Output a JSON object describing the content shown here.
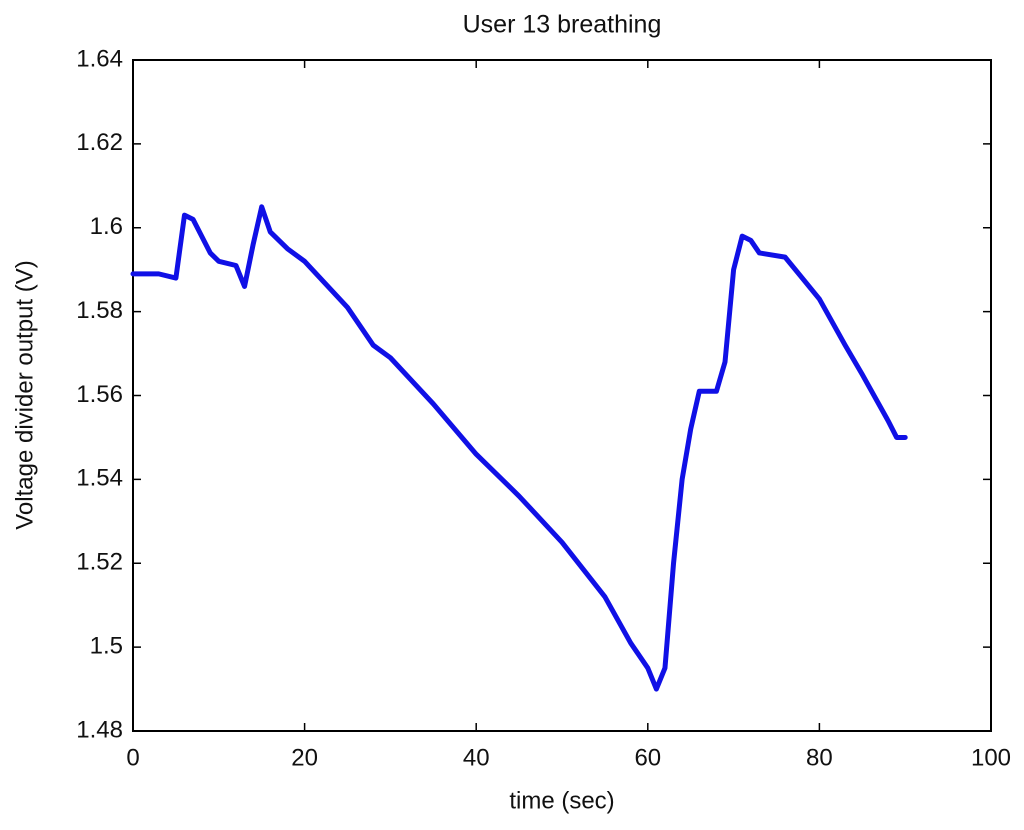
{
  "chart_data": {
    "type": "line",
    "title": "User 13 breathing",
    "x_label": "time (sec)",
    "y_label": "Voltage divider output (V)",
    "x": [
      0,
      3,
      5,
      6,
      7,
      9,
      10,
      12,
      13,
      14,
      15,
      16,
      18,
      20,
      25,
      28,
      30,
      35,
      40,
      45,
      50,
      55,
      58,
      60,
      61,
      62,
      63,
      64,
      65,
      66,
      68,
      69,
      70,
      71,
      72,
      73,
      76,
      78,
      80,
      83,
      85,
      88,
      89,
      90
    ],
    "series": [
      {
        "name": "breathing",
        "color": "#1010e6",
        "values": [
          1.589,
          1.589,
          1.588,
          1.603,
          1.602,
          1.594,
          1.592,
          1.591,
          1.586,
          1.596,
          1.605,
          1.599,
          1.595,
          1.592,
          1.581,
          1.572,
          1.569,
          1.558,
          1.546,
          1.536,
          1.525,
          1.512,
          1.501,
          1.495,
          1.49,
          1.495,
          1.52,
          1.54,
          1.552,
          1.561,
          1.561,
          1.568,
          1.59,
          1.598,
          1.597,
          1.594,
          1.593,
          1.588,
          1.583,
          1.572,
          1.565,
          1.554,
          1.55,
          1.55
        ]
      }
    ],
    "xlim": [
      0,
      100
    ],
    "xticks": [
      0,
      20,
      40,
      60,
      80,
      100
    ],
    "ylim": [
      1.48,
      1.64
    ],
    "yticks": [
      1.48,
      1.5,
      1.52,
      1.54,
      1.56,
      1.58,
      1.6,
      1.62,
      1.64
    ]
  }
}
